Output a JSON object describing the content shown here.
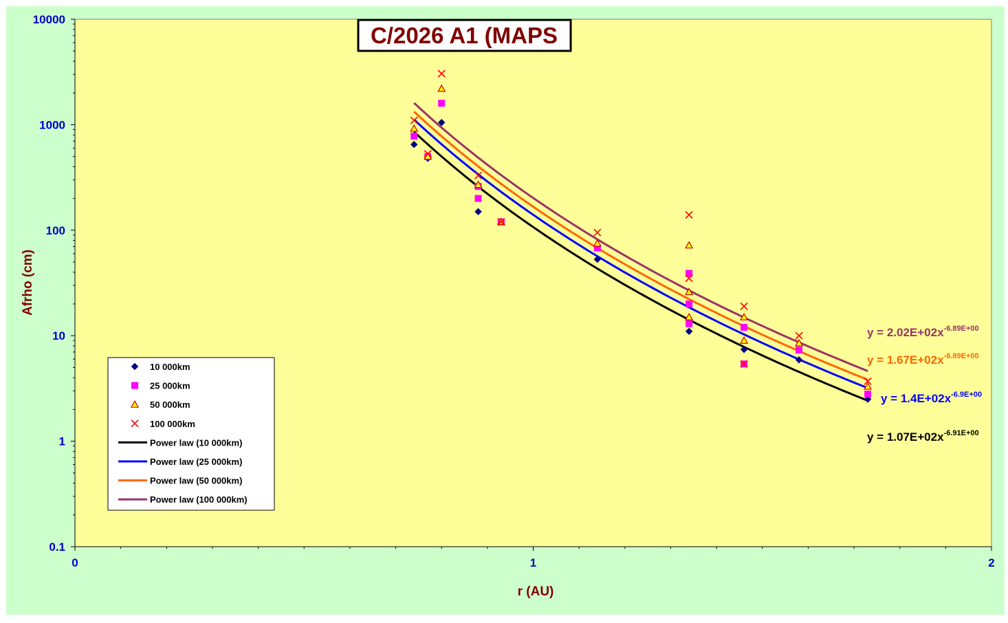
{
  "chart_data": {
    "type": "scatter",
    "title": "C/2026 A1 (MAPS",
    "xlabel": "r (AU)",
    "ylabel": "Afrho (cm)",
    "x_scale": "linear",
    "y_scale": "log",
    "xlim": [
      0,
      2
    ],
    "ylim": [
      0.1,
      10000
    ],
    "x_ticks": [
      "0",
      "1",
      "2"
    ],
    "y_ticks": [
      "0.1",
      "1",
      "10",
      "100",
      "1000",
      "10000"
    ],
    "grid": false,
    "legend_position": "lower-left",
    "colors": {
      "outer_bg": "#ccffcc",
      "plot_bg": "#ffff99",
      "title_text": "#800000",
      "axis_title": "#800000",
      "tick_label": "#0000cc",
      "s10k": "#000080",
      "s25k": "#ff00ff",
      "s50k": "#ffff00",
      "s50k_edge": "#cc0000",
      "s100k": "#ff0000",
      "fit10k": "#000000",
      "fit25k": "#0000ff",
      "fit50k": "#ff6600",
      "fit100k": "#993366"
    },
    "series": [
      {
        "name": "10 000km",
        "marker": "diamond",
        "color": "#000080",
        "points": [
          [
            0.74,
            650
          ],
          [
            0.77,
            480
          ],
          [
            0.8,
            1050
          ],
          [
            0.88,
            150
          ],
          [
            0.93,
            120
          ],
          [
            1.14,
            53
          ],
          [
            1.34,
            11
          ],
          [
            1.34,
            20
          ],
          [
            1.46,
            7.4
          ],
          [
            1.46,
            5.4
          ],
          [
            1.58,
            5.9
          ],
          [
            1.73,
            2.5
          ]
        ]
      },
      {
        "name": "25 000km",
        "marker": "square",
        "color": "#ff00ff",
        "points": [
          [
            0.74,
            780
          ],
          [
            0.77,
            500
          ],
          [
            0.8,
            1600
          ],
          [
            0.88,
            200
          ],
          [
            0.88,
            260
          ],
          [
            0.93,
            120
          ],
          [
            1.14,
            68
          ],
          [
            1.34,
            13
          ],
          [
            1.34,
            39
          ],
          [
            1.34,
            20
          ],
          [
            1.46,
            12
          ],
          [
            1.46,
            5.4
          ],
          [
            1.58,
            7.3
          ],
          [
            1.73,
            2.8
          ]
        ]
      },
      {
        "name": "50 000km",
        "marker": "triangle",
        "color": "#ffff00",
        "points": [
          [
            0.74,
            920
          ],
          [
            0.77,
            500
          ],
          [
            0.8,
            2200
          ],
          [
            0.88,
            270
          ],
          [
            0.93,
            120
          ],
          [
            1.14,
            75
          ],
          [
            1.34,
            15
          ],
          [
            1.34,
            72
          ],
          [
            1.34,
            26
          ],
          [
            1.46,
            15
          ],
          [
            1.46,
            9
          ],
          [
            1.58,
            8.5
          ],
          [
            1.73,
            3.3
          ]
        ]
      },
      {
        "name": "100 000km",
        "marker": "cross",
        "color": "#ff0000",
        "points": [
          [
            0.74,
            1100
          ],
          [
            0.77,
            530
          ],
          [
            0.8,
            3050
          ],
          [
            0.88,
            330
          ],
          [
            0.93,
            120
          ],
          [
            1.14,
            95
          ],
          [
            1.34,
            140
          ],
          [
            1.34,
            35
          ],
          [
            1.46,
            19
          ],
          [
            1.46,
            5.4
          ],
          [
            1.58,
            10
          ],
          [
            1.73,
            3.7
          ]
        ]
      }
    ],
    "fits": [
      {
        "name": "Power law (10 000km)",
        "color": "#000000",
        "a": 107,
        "b": -6.91,
        "equation": "y = 1.07E+02x",
        "exponent": "-6.91E+00",
        "x_range": [
          0.74,
          1.73
        ]
      },
      {
        "name": "Power law (25 000km)",
        "color": "#0000ff",
        "a": 140,
        "b": -6.9,
        "equation": "y = 1.4E+02x",
        "exponent": "-6.9E+00",
        "x_range": [
          0.74,
          1.73
        ]
      },
      {
        "name": "Power law (50 000km)",
        "color": "#ff6600",
        "a": 167,
        "b": -6.89,
        "equation": "y = 1.67E+02x",
        "exponent": "-6.89E+00",
        "x_range": [
          0.74,
          1.73
        ]
      },
      {
        "name": "Power law (100 000km)",
        "color": "#993366",
        "a": 202,
        "b": -6.89,
        "equation": "y = 2.02E+02x",
        "exponent": "-6.89E+00",
        "x_range": [
          0.74,
          1.73
        ]
      }
    ]
  }
}
